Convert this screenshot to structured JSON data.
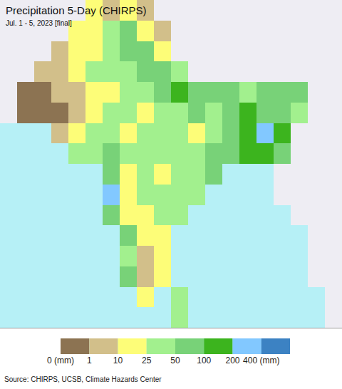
{
  "chart_data": {
    "type": "heatmap",
    "title": "Precipitation 5-Day (CHIRPS)",
    "subtitle": "Jul. 1 - 5, 2023 [final]",
    "source": "Source: CHIRPS, UCSB, Climate Hazards Center",
    "tick_labels": false,
    "grid": false,
    "xlim": [
      60,
      100
    ],
    "ylim": [
      5,
      37
    ],
    "x": [
      61,
      63,
      65,
      67,
      69,
      71,
      73,
      75,
      77,
      79,
      81,
      83,
      85,
      87,
      89,
      91,
      93,
      95,
      97,
      99
    ],
    "y": [
      6,
      8,
      10,
      12,
      14,
      16,
      18,
      20,
      22,
      24,
      26,
      28,
      30,
      32,
      34,
      36
    ],
    "cells": [
      [
        null,
        null,
        null,
        null,
        null,
        null,
        null,
        null,
        null,
        null,
        35,
        null,
        null,
        null,
        null,
        null,
        null,
        null,
        null,
        null
      ],
      [
        null,
        null,
        null,
        null,
        null,
        null,
        null,
        null,
        15,
        null,
        35,
        null,
        null,
        null,
        null,
        null,
        null,
        null,
        null,
        null
      ],
      [
        null,
        null,
        null,
        null,
        null,
        null,
        null,
        70,
        5,
        15,
        null,
        null,
        null,
        null,
        null,
        null,
        null,
        null,
        null,
        null
      ],
      [
        null,
        null,
        null,
        null,
        null,
        null,
        null,
        35,
        3,
        15,
        null,
        null,
        null,
        null,
        null,
        null,
        null,
        null,
        null,
        null
      ],
      [
        null,
        null,
        null,
        null,
        null,
        null,
        null,
        70,
        15,
        15,
        null,
        null,
        null,
        null,
        null,
        null,
        null,
        null,
        null,
        null
      ],
      [
        null,
        null,
        null,
        null,
        null,
        null,
        70,
        15,
        15,
        35,
        35,
        null,
        null,
        null,
        null,
        null,
        null,
        null,
        null,
        null
      ],
      [
        null,
        null,
        null,
        null,
        null,
        null,
        250,
        15,
        35,
        35,
        35,
        35,
        null,
        null,
        null,
        null,
        null,
        null,
        null,
        null
      ],
      [
        null,
        null,
        null,
        null,
        null,
        null,
        70,
        15,
        35,
        15,
        35,
        35,
        70,
        null,
        null,
        null,
        null,
        null,
        null,
        null
      ],
      [
        null,
        null,
        null,
        null,
        35,
        35,
        70,
        35,
        35,
        35,
        35,
        35,
        70,
        70,
        150,
        150,
        70,
        null,
        null,
        null
      ],
      [
        null,
        null,
        null,
        5,
        15,
        35,
        35,
        15,
        35,
        35,
        35,
        15,
        35,
        70,
        150,
        250,
        150,
        null,
        null,
        null
      ],
      [
        null,
        0.5,
        0.5,
        0.5,
        5,
        15,
        35,
        35,
        15,
        35,
        35,
        70,
        35,
        70,
        150,
        70,
        70,
        35,
        null,
        null
      ],
      [
        null,
        0.5,
        0.5,
        5,
        5,
        15,
        15,
        35,
        35,
        70,
        150,
        70,
        70,
        70,
        35,
        70,
        70,
        70,
        null,
        null
      ],
      [
        null,
        null,
        5,
        5,
        15,
        35,
        35,
        35,
        70,
        70,
        35,
        null,
        null,
        null,
        null,
        null,
        null,
        null,
        null,
        null
      ],
      [
        null,
        null,
        null,
        5,
        15,
        15,
        35,
        70,
        70,
        15,
        null,
        null,
        null,
        null,
        null,
        null,
        null,
        null,
        null,
        null
      ],
      [
        null,
        null,
        null,
        null,
        15,
        15,
        35,
        70,
        15,
        5,
        null,
        null,
        null,
        null,
        null,
        null,
        null,
        null,
        null,
        null
      ],
      [
        null,
        null,
        null,
        null,
        null,
        15,
        5,
        15,
        5,
        null,
        null,
        null,
        null,
        null,
        null,
        null,
        null,
        null,
        null,
        null
      ]
    ],
    "other_land": [
      [
        null,
        null,
        null,
        null,
        null,
        null,
        null,
        null,
        null,
        null,
        null,
        null,
        null,
        null,
        null,
        null,
        null,
        null,
        null,
        1
      ],
      [
        null,
        null,
        null,
        null,
        null,
        null,
        null,
        null,
        null,
        null,
        null,
        null,
        null,
        null,
        null,
        null,
        null,
        null,
        null,
        1
      ],
      [
        null,
        null,
        null,
        null,
        null,
        null,
        null,
        null,
        null,
        null,
        null,
        null,
        null,
        null,
        null,
        null,
        null,
        null,
        1,
        1
      ],
      [
        null,
        null,
        null,
        null,
        null,
        null,
        null,
        null,
        null,
        null,
        null,
        null,
        null,
        null,
        null,
        null,
        null,
        null,
        1,
        1
      ],
      [
        null,
        null,
        null,
        null,
        null,
        null,
        null,
        null,
        null,
        null,
        null,
        null,
        null,
        null,
        null,
        null,
        null,
        null,
        1,
        1
      ],
      [
        null,
        null,
        null,
        null,
        null,
        null,
        null,
        null,
        null,
        null,
        null,
        null,
        null,
        null,
        null,
        null,
        null,
        1,
        1,
        1
      ],
      [
        null,
        null,
        null,
        null,
        null,
        null,
        null,
        null,
        null,
        null,
        null,
        null,
        null,
        null,
        null,
        null,
        1,
        1,
        1,
        1
      ],
      [
        null,
        null,
        null,
        null,
        null,
        null,
        null,
        null,
        null,
        null,
        null,
        null,
        null,
        null,
        null,
        null,
        1,
        1,
        1,
        1
      ],
      [
        null,
        null,
        null,
        null,
        null,
        null,
        null,
        null,
        null,
        null,
        null,
        null,
        null,
        null,
        null,
        null,
        null,
        1,
        1,
        1
      ],
      [
        null,
        null,
        null,
        null,
        null,
        null,
        null,
        null,
        null,
        null,
        null,
        null,
        null,
        null,
        null,
        null,
        null,
        1,
        1,
        1
      ],
      [
        1,
        null,
        null,
        null,
        null,
        null,
        null,
        null,
        null,
        null,
        null,
        null,
        null,
        null,
        null,
        null,
        null,
        null,
        1,
        1
      ],
      [
        1,
        null,
        null,
        null,
        null,
        null,
        null,
        null,
        null,
        null,
        null,
        null,
        null,
        null,
        null,
        null,
        null,
        null,
        1,
        1
      ],
      [
        1,
        1,
        null,
        null,
        null,
        null,
        null,
        null,
        null,
        null,
        null,
        1,
        1,
        1,
        1,
        1,
        1,
        1,
        1,
        1
      ],
      [
        1,
        1,
        1,
        null,
        null,
        null,
        null,
        null,
        null,
        null,
        1,
        1,
        1,
        1,
        1,
        1,
        1,
        1,
        1,
        1
      ],
      [
        1,
        1,
        1,
        1,
        null,
        null,
        null,
        null,
        null,
        null,
        1,
        1,
        1,
        1,
        1,
        1,
        1,
        1,
        1,
        1
      ],
      [
        1,
        1,
        1,
        1,
        1,
        null,
        null,
        null,
        null,
        1,
        1,
        1,
        1,
        1,
        1,
        1,
        1,
        1,
        1,
        1
      ]
    ],
    "colorbar": {
      "bins": [
        0,
        1,
        10,
        25,
        50,
        100,
        200,
        400
      ],
      "colors": [
        "#8c7352",
        "#d2bf8a",
        "#fdfd78",
        "#a2f08e",
        "#78d278",
        "#3cb41e",
        "#82c8ff",
        "#3c82c3"
      ],
      "ticks": [
        {
          "value": 0,
          "label": "0 (mm)"
        },
        1,
        10,
        25,
        50,
        100,
        200,
        {
          "value": 400,
          "label": "400 (mm)"
        }
      ]
    }
  }
}
